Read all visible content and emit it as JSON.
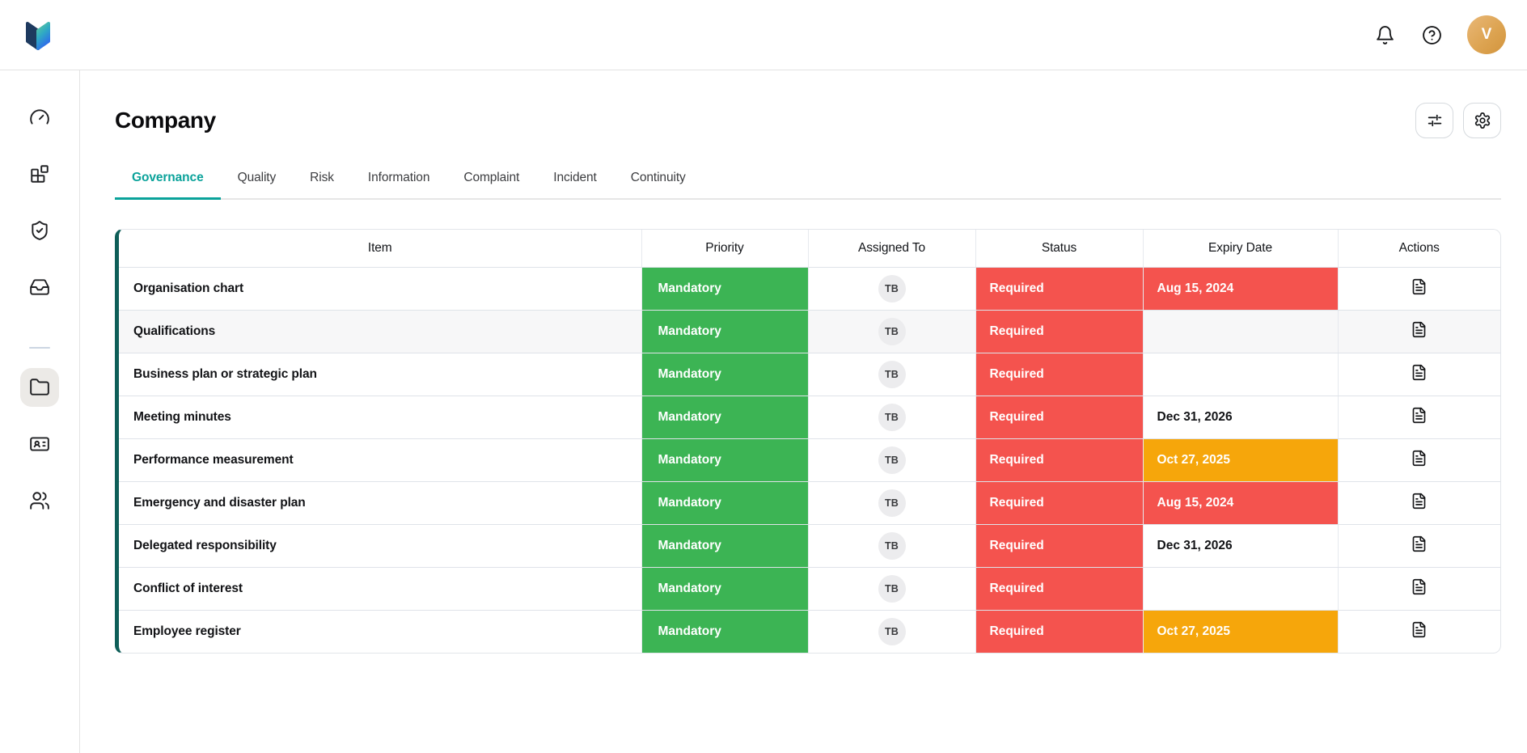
{
  "topbar": {
    "avatar_initial": "V",
    "icons": [
      "notifications-bell-icon",
      "help-circle-icon",
      "user-avatar"
    ]
  },
  "sidebar": {
    "items": [
      {
        "name": "dashboard",
        "icon": "gauge-icon",
        "active": false
      },
      {
        "name": "modules",
        "icon": "blocks-icon",
        "active": false
      },
      {
        "name": "compliance",
        "icon": "shield-check-icon",
        "active": false
      },
      {
        "name": "inbox",
        "icon": "inbox-icon",
        "active": false
      },
      {
        "name": "documents",
        "icon": "folder-icon",
        "active": true
      },
      {
        "name": "id-cards",
        "icon": "id-card-icon",
        "active": false
      },
      {
        "name": "people",
        "icon": "users-icon",
        "active": false
      }
    ]
  },
  "page": {
    "title": "Company",
    "toolbar": {
      "filter_icon": "sliders-icon",
      "settings_icon": "gear-icon"
    },
    "tabs": [
      {
        "label": "Governance",
        "active": true
      },
      {
        "label": "Quality",
        "active": false
      },
      {
        "label": "Risk",
        "active": false
      },
      {
        "label": "Information",
        "active": false
      },
      {
        "label": "Complaint",
        "active": false
      },
      {
        "label": "Incident",
        "active": false
      },
      {
        "label": "Continuity",
        "active": false
      }
    ],
    "table": {
      "columns": [
        "Item",
        "Priority",
        "Assigned To",
        "Status",
        "Expiry Date",
        "Actions"
      ],
      "rows": [
        {
          "item": "Organisation chart",
          "priority": "Mandatory",
          "assigned": "TB",
          "status": "Required",
          "expiry": "Aug 15, 2024",
          "expiry_style": "danger",
          "highlight": false
        },
        {
          "item": "Qualifications",
          "priority": "Mandatory",
          "assigned": "TB",
          "status": "Required",
          "expiry": "",
          "expiry_style": "none",
          "highlight": true
        },
        {
          "item": "Business plan or strategic plan",
          "priority": "Mandatory",
          "assigned": "TB",
          "status": "Required",
          "expiry": "",
          "expiry_style": "none",
          "highlight": false
        },
        {
          "item": "Meeting minutes",
          "priority": "Mandatory",
          "assigned": "TB",
          "status": "Required",
          "expiry": "Dec 31, 2026",
          "expiry_style": "plain",
          "highlight": false
        },
        {
          "item": "Performance measurement",
          "priority": "Mandatory",
          "assigned": "TB",
          "status": "Required",
          "expiry": "Oct 27, 2025",
          "expiry_style": "warning",
          "highlight": false
        },
        {
          "item": "Emergency and disaster plan",
          "priority": "Mandatory",
          "assigned": "TB",
          "status": "Required",
          "expiry": "Aug 15, 2024",
          "expiry_style": "danger",
          "highlight": false
        },
        {
          "item": "Delegated responsibility",
          "priority": "Mandatory",
          "assigned": "TB",
          "status": "Required",
          "expiry": "Dec 31, 2026",
          "expiry_style": "plain",
          "highlight": false
        },
        {
          "item": "Conflict of interest",
          "priority": "Mandatory",
          "assigned": "TB",
          "status": "Required",
          "expiry": "",
          "expiry_style": "none",
          "highlight": false
        },
        {
          "item": "Employee register",
          "priority": "Mandatory",
          "assigned": "TB",
          "status": "Required",
          "expiry": "Oct 27, 2025",
          "expiry_style": "warning",
          "highlight": false
        }
      ]
    },
    "colors": {
      "accent_teal": "#0aa29a",
      "table_accent_bar": "#0e5e58",
      "priority_green": "#3cb454",
      "status_red": "#f4534e",
      "expiry_amber": "#f6a60b",
      "avatar_gold": "#dda452"
    }
  }
}
